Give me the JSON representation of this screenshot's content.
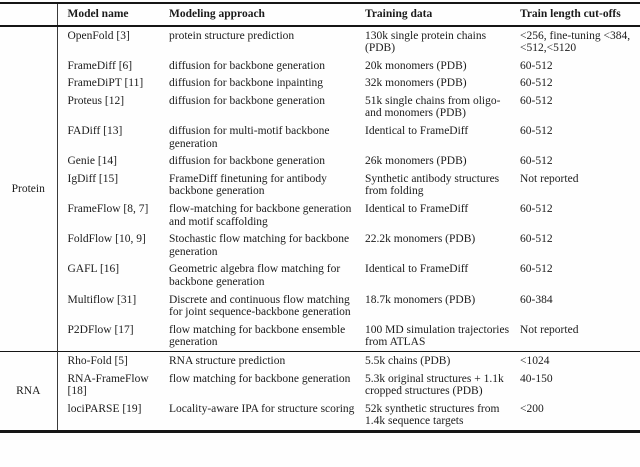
{
  "table": {
    "headers": {
      "group": "",
      "model": "Model name",
      "approach": "Modeling approach",
      "training": "Training data",
      "cutoff": "Train length cut-offs"
    },
    "sections": [
      {
        "group": "Protein",
        "rows": [
          {
            "model": "OpenFold [3]",
            "approach": "protein structure prediction",
            "training": "130k single protein chains (PDB)",
            "cutoff": "<256, fine-tuning <384,<512,<5120"
          },
          {
            "model": "FrameDiff [6]",
            "approach": "diffusion for backbone generation",
            "training": "20k monomers (PDB)",
            "cutoff": "60-512"
          },
          {
            "model": "FrameDiPT [11]",
            "approach": "diffusion for backbone inpainting",
            "training": "32k monomers (PDB)",
            "cutoff": "60-512"
          },
          {
            "model": "Proteus [12]",
            "approach": "diffusion for backbone generation",
            "training": "51k single chains from oligo- and monomers (PDB)",
            "cutoff": "60-512"
          },
          {
            "model": "FADiff [13]",
            "approach": "diffusion for multi-motif backbone generation",
            "training": "Identical to FrameDiff",
            "cutoff": "60-512"
          },
          {
            "model": "Genie [14]",
            "approach": "diffusion for backbone generation",
            "training": "26k monomers (PDB)",
            "cutoff": "60-512"
          },
          {
            "model": "IgDiff [15]",
            "approach": "FrameDiff finetuning for antibody backbone generation",
            "training": "Synthetic antibody structures from folding",
            "cutoff": "Not reported"
          },
          {
            "model": "FrameFlow [8, 7]",
            "approach": "flow-matching for backbone generation and motif scaffolding",
            "training": "Identical to FrameDiff",
            "cutoff": "60-512"
          },
          {
            "model": "FoldFlow [10, 9]",
            "approach": "Stochastic flow matching for backbone generation",
            "training": "22.2k monomers (PDB)",
            "cutoff": "60-512"
          },
          {
            "model": "GAFL [16]",
            "approach": "Geometric algebra flow matching for backbone generation",
            "training": "Identical to FrameDiff",
            "cutoff": "60-512"
          },
          {
            "model": "Multiflow [31]",
            "approach": "Discrete and continuous flow matching for joint sequence-backbone generation",
            "training": "18.7k monomers (PDB)",
            "cutoff": "60-384"
          },
          {
            "model": "P2DFlow [17]",
            "approach": "flow matching for backbone ensemble generation",
            "training": "100 MD simulation trajectories from ATLAS",
            "cutoff": "Not reported"
          }
        ]
      },
      {
        "group": "RNA",
        "rows": [
          {
            "model": "Rho-Fold [5]",
            "approach": "RNA structure prediction",
            "training": "5.5k chains (PDB)",
            "cutoff": "<1024"
          },
          {
            "model": "RNA-FrameFlow [18]",
            "approach": "flow matching for backbone generation",
            "training": "5.3k original structures + 1.1k cropped structures (PDB)",
            "cutoff": "40-150"
          },
          {
            "model": "lociPARSE [19]",
            "approach": "Locality-aware IPA for structure scoring",
            "training": "52k synthetic structures from 1.4k sequence targets",
            "cutoff": "<200"
          }
        ]
      }
    ]
  },
  "colors": {
    "text": "#1b1b1b",
    "rule": "#151515"
  }
}
